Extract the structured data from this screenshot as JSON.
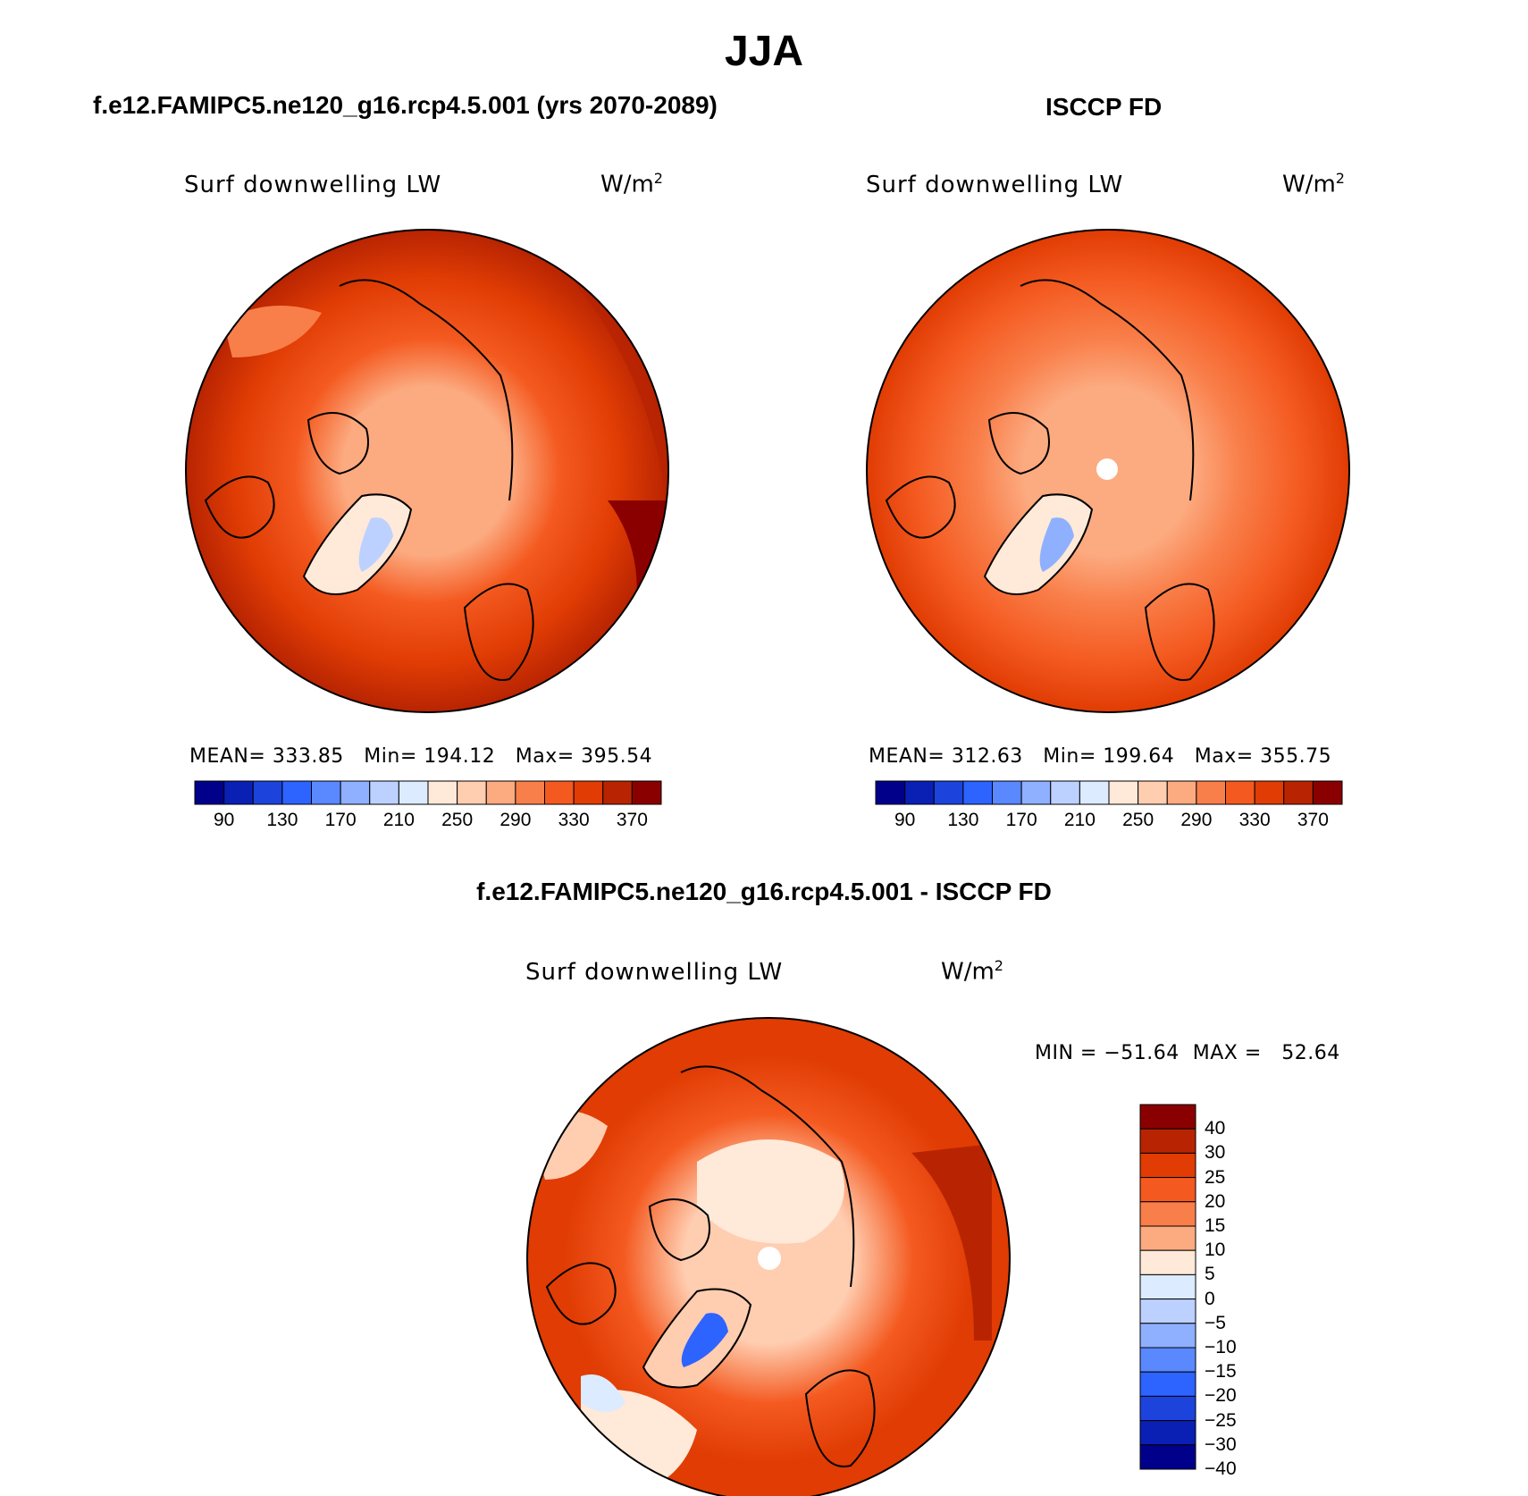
{
  "title": "JJA",
  "panels": [
    {
      "id": "model",
      "heading": "f.e12.FAMIPC5.ne120_g16.rcp4.5.001 (yrs 2070-2089)",
      "variable": "Surf downwelling LW",
      "units_base": "W/m",
      "units_exp": "2",
      "stats": {
        "mean_label": "MEAN=",
        "mean": "333.85",
        "min_label": "Min=",
        "min": "194.12",
        "max_label": "Max=",
        "max": "395.54"
      }
    },
    {
      "id": "obs",
      "heading": "ISCCP FD",
      "variable": "Surf downwelling LW",
      "units_base": "W/m",
      "units_exp": "2",
      "stats": {
        "mean_label": "MEAN=",
        "mean": "312.63",
        "min_label": "Min=",
        "min": "199.64",
        "max_label": "Max=",
        "max": "355.75"
      }
    },
    {
      "id": "diff",
      "heading": "f.e12.FAMIPC5.ne120_g16.rcp4.5.001 - ISCCP FD",
      "variable": "Surf downwelling LW",
      "units_base": "W/m",
      "units_exp": "2",
      "stats_text": "MIN = −51.64  MAX =   52.64"
    }
  ],
  "colorbar_abs": {
    "colors": [
      "#00008b",
      "#0a1fb4",
      "#1c44dc",
      "#2d63ff",
      "#5a88ff",
      "#8fb0ff",
      "#bcd1ff",
      "#dcebff",
      "#ffe9d8",
      "#ffcdb0",
      "#fcaa80",
      "#f97f4a",
      "#f45a20",
      "#e03c04",
      "#b82402",
      "#8a0000"
    ],
    "tick_labels": [
      "90",
      "130",
      "170",
      "210",
      "250",
      "290",
      "330",
      "370"
    ]
  },
  "colorbar_diff": {
    "colors_top_to_bottom": [
      "#8a0000",
      "#b82402",
      "#e03c04",
      "#f45a20",
      "#f97f4a",
      "#fcaa80",
      "#ffe9d8",
      "#dcebff",
      "#bcd1ff",
      "#8fb0ff",
      "#5a88ff",
      "#2d63ff",
      "#1c44dc",
      "#0a1fb4",
      "#00008b"
    ],
    "tick_labels": [
      "40",
      "30",
      "25",
      "20",
      "15",
      "10",
      "5",
      "0",
      "−5",
      "−10",
      "−15",
      "−20",
      "−25",
      "−30",
      "−40"
    ]
  },
  "chart_data": [
    {
      "type": "heatmap",
      "projection": "north-polar-stereographic",
      "title": "Surf downwelling LW",
      "units": "W/m2",
      "levels": [
        90,
        110,
        130,
        150,
        170,
        190,
        210,
        230,
        250,
        270,
        290,
        310,
        330,
        350,
        370
      ],
      "stats": {
        "mean": 333.85,
        "min": 194.12,
        "max": 395.54
      }
    },
    {
      "type": "heatmap",
      "projection": "north-polar-stereographic",
      "title": "Surf downwelling LW",
      "units": "W/m2",
      "levels": [
        90,
        110,
        130,
        150,
        170,
        190,
        210,
        230,
        250,
        270,
        290,
        310,
        330,
        350,
        370
      ],
      "stats": {
        "mean": 312.63,
        "min": 199.64,
        "max": 355.75
      }
    },
    {
      "type": "heatmap",
      "projection": "north-polar-stereographic",
      "title": "Surf downwelling LW",
      "units": "W/m2",
      "levels": [
        -40,
        -30,
        -25,
        -20,
        -15,
        -10,
        -5,
        0,
        5,
        10,
        15,
        20,
        25,
        30,
        40
      ],
      "stats": {
        "min": -51.64,
        "max": 52.64
      }
    }
  ]
}
